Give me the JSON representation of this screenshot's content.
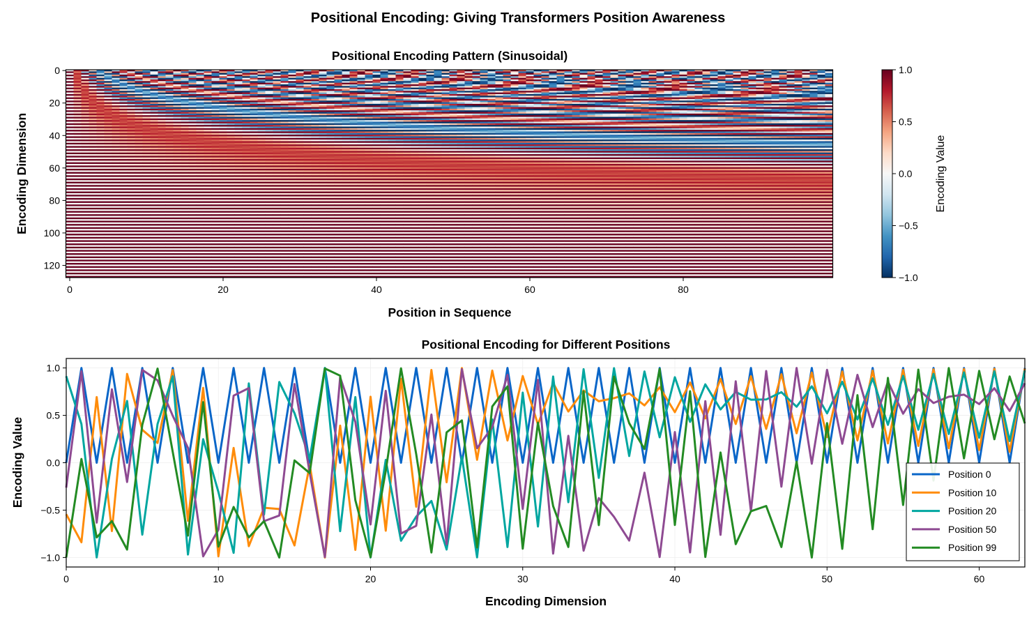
{
  "suptitle": "Positional Encoding: Giving Transformers Position Awareness",
  "chart_data": [
    {
      "type": "heatmap",
      "title": "Positional Encoding Pattern (Sinusoidal)",
      "xlabel": "Position in Sequence",
      "ylabel": "Encoding Dimension",
      "encoding": "sinusoidal",
      "d_model": 128,
      "num_positions": 100,
      "xlim": [
        -0.5,
        99.5
      ],
      "ylim": [
        127.5,
        -0.5
      ],
      "xticks": [
        0,
        20,
        40,
        60,
        80
      ],
      "yticks": [
        0,
        20,
        40,
        60,
        80,
        100,
        120
      ],
      "colormap": "RdBu_r",
      "colorbar": {
        "label": "Encoding Value",
        "range": [
          -1,
          1
        ],
        "ticks": [
          "1.0",
          "0.5",
          "0.0",
          "−0.5",
          "−1.0"
        ],
        "tick_values": [
          1,
          0.5,
          0,
          -0.5,
          -1
        ]
      }
    },
    {
      "type": "line",
      "title": "Positional Encoding for Different Positions",
      "xlabel": "Encoding Dimension",
      "ylabel": "Encoding Value",
      "encoding": "sinusoidal",
      "d_model": 128,
      "x": "dimensions 0-63",
      "num_dims_shown": 64,
      "xlim": [
        0,
        63
      ],
      "ylim": [
        -1.1,
        1.1
      ],
      "xticks": [
        0,
        10,
        20,
        30,
        40,
        50,
        60
      ],
      "yticks": [
        "1.0",
        "0.5",
        "0.0",
        "−0.5",
        "−1.0"
      ],
      "ytick_values": [
        1,
        0.5,
        0,
        -0.5,
        -1
      ],
      "grid": true,
      "legend": "lower-right",
      "series": [
        {
          "name": "Position 0",
          "position": 0,
          "color": "#0a66c8"
        },
        {
          "name": "Position 10",
          "position": 10,
          "color": "#ff8c0a"
        },
        {
          "name": "Position 20",
          "position": 20,
          "color": "#00a6a0"
        },
        {
          "name": "Position 50",
          "position": 50,
          "color": "#8e4a92"
        },
        {
          "name": "Position 99",
          "position": 99,
          "color": "#238b23"
        }
      ]
    }
  ]
}
